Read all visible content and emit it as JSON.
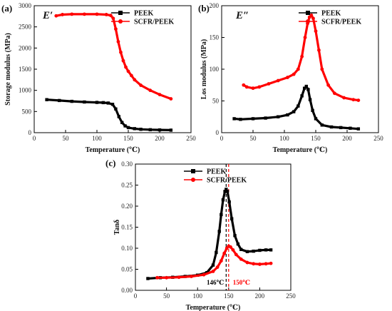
{
  "colors": {
    "peek": "#000000",
    "scfr": "#ff0000",
    "dashed_black": "#000000",
    "dashed_red": "#ff0000"
  },
  "chart_data": [
    {
      "id": "a",
      "type": "line",
      "panel_label": "(a)",
      "title": "E′",
      "xlabel": "Temperature (℃)",
      "ylabel": "Storage modulus (MPa)",
      "xlim": [
        0,
        250
      ],
      "ylim": [
        0,
        3000
      ],
      "xticks": [
        0,
        50,
        100,
        150,
        200,
        250
      ],
      "yticks": [
        0,
        500,
        1000,
        1500,
        2000,
        2500,
        3000
      ],
      "xtick_labels": [
        "0",
        "50",
        "100",
        "150",
        "200",
        "250"
      ],
      "ytick_labels": [
        "0",
        "500",
        "1000",
        "1500",
        "2000",
        "2500",
        "3000"
      ],
      "legend_position": "top-right",
      "series": [
        {
          "name": "PEEK",
          "color": "#000000",
          "marker": "square",
          "x": [
            20,
            40,
            60,
            80,
            100,
            110,
            118,
            125,
            130,
            135,
            140,
            145,
            150,
            160,
            170,
            185,
            200,
            218
          ],
          "y": [
            780,
            760,
            740,
            725,
            715,
            710,
            700,
            670,
            560,
            380,
            240,
            160,
            120,
            95,
            80,
            70,
            65,
            60
          ]
        },
        {
          "name": "SCFR/PEEK",
          "color": "#ff0000",
          "marker": "circle",
          "x": [
            35,
            45,
            60,
            80,
            100,
            115,
            122,
            126,
            130,
            134,
            138,
            142,
            146,
            150,
            155,
            160,
            170,
            185,
            200,
            218
          ],
          "y": [
            2760,
            2790,
            2800,
            2800,
            2800,
            2790,
            2770,
            2700,
            2450,
            2150,
            1900,
            1700,
            1550,
            1450,
            1350,
            1250,
            1120,
            1000,
            900,
            800
          ]
        }
      ]
    },
    {
      "id": "b",
      "type": "line",
      "panel_label": "(b)",
      "title": "E″",
      "xlabel": "Temperature (℃)",
      "ylabel": "Los modulus (MPa)",
      "xlim": [
        0,
        250
      ],
      "ylim": [
        0,
        200
      ],
      "xticks": [
        0,
        50,
        100,
        150,
        200,
        250
      ],
      "yticks": [
        0,
        50,
        100,
        150,
        200
      ],
      "xtick_labels": [
        "0",
        "50",
        "100",
        "150",
        "200",
        "250"
      ],
      "ytick_labels": [
        "0",
        "50",
        "100",
        "150",
        "200"
      ],
      "legend_position": "top-right",
      "series": [
        {
          "name": "PEEK",
          "color": "#000000",
          "marker": "square",
          "x": [
            20,
            30,
            50,
            70,
            90,
            105,
            115,
            122,
            128,
            132,
            135,
            138,
            141,
            145,
            150,
            160,
            175,
            190,
            205,
            218
          ],
          "y": [
            22,
            21,
            22,
            23,
            25,
            28,
            33,
            42,
            58,
            70,
            73,
            68,
            52,
            35,
            22,
            12,
            9,
            8,
            7,
            6
          ]
        },
        {
          "name": "SCFR/PEEK",
          "color": "#ff0000",
          "marker": "circle",
          "x": [
            35,
            40,
            50,
            60,
            75,
            90,
            105,
            115,
            122,
            128,
            133,
            137,
            140,
            143,
            146,
            150,
            155,
            160,
            170,
            180,
            195,
            210,
            218
          ],
          "y": [
            75,
            72,
            70,
            72,
            77,
            82,
            87,
            92,
            100,
            120,
            150,
            172,
            182,
            185,
            180,
            160,
            130,
            100,
            75,
            62,
            55,
            52,
            51
          ]
        }
      ]
    },
    {
      "id": "c",
      "type": "line",
      "panel_label": "(c)",
      "xlabel": "Temperature (℃)",
      "ylabel": "Tanδ",
      "xlim": [
        0,
        250
      ],
      "ylim": [
        0,
        0.3
      ],
      "xticks": [
        0,
        50,
        100,
        150,
        200,
        250
      ],
      "yticks": [
        0,
        0.05,
        0.1,
        0.15,
        0.2,
        0.25,
        0.3
      ],
      "xtick_labels": [
        "0",
        "50",
        "100",
        "150",
        "200",
        "250"
      ],
      "ytick_labels": [
        "0.00",
        "0.05",
        "0.10",
        "0.15",
        "0.20",
        "0.25",
        "0.30"
      ],
      "legend_position": "top-right",
      "annotations": [
        {
          "text": "146℃",
          "x": 146,
          "color": "#000000"
        },
        {
          "text": "150℃",
          "x": 150,
          "color": "#ff0000"
        }
      ],
      "series": [
        {
          "name": "PEEK",
          "color": "#000000",
          "marker": "square",
          "x": [
            20,
            40,
            60,
            80,
            100,
            115,
            125,
            130,
            135,
            138,
            141,
            144,
            146,
            148,
            151,
            155,
            160,
            165,
            170,
            180,
            190,
            200,
            210,
            218
          ],
          "y": [
            0.028,
            0.03,
            0.031,
            0.033,
            0.036,
            0.042,
            0.06,
            0.09,
            0.14,
            0.18,
            0.215,
            0.235,
            0.24,
            0.235,
            0.21,
            0.17,
            0.13,
            0.11,
            0.097,
            0.092,
            0.093,
            0.095,
            0.096,
            0.096
          ]
        },
        {
          "name": "SCFR/PEEK",
          "color": "#ff0000",
          "marker": "circle",
          "x": [
            35,
            50,
            70,
            90,
            110,
            125,
            132,
            138,
            143,
            147,
            150,
            153,
            157,
            162,
            170,
            180,
            190,
            200,
            210,
            218
          ],
          "y": [
            0.03,
            0.03,
            0.031,
            0.033,
            0.037,
            0.045,
            0.055,
            0.07,
            0.088,
            0.1,
            0.105,
            0.103,
            0.096,
            0.085,
            0.074,
            0.066,
            0.063,
            0.062,
            0.063,
            0.064
          ]
        }
      ]
    }
  ]
}
